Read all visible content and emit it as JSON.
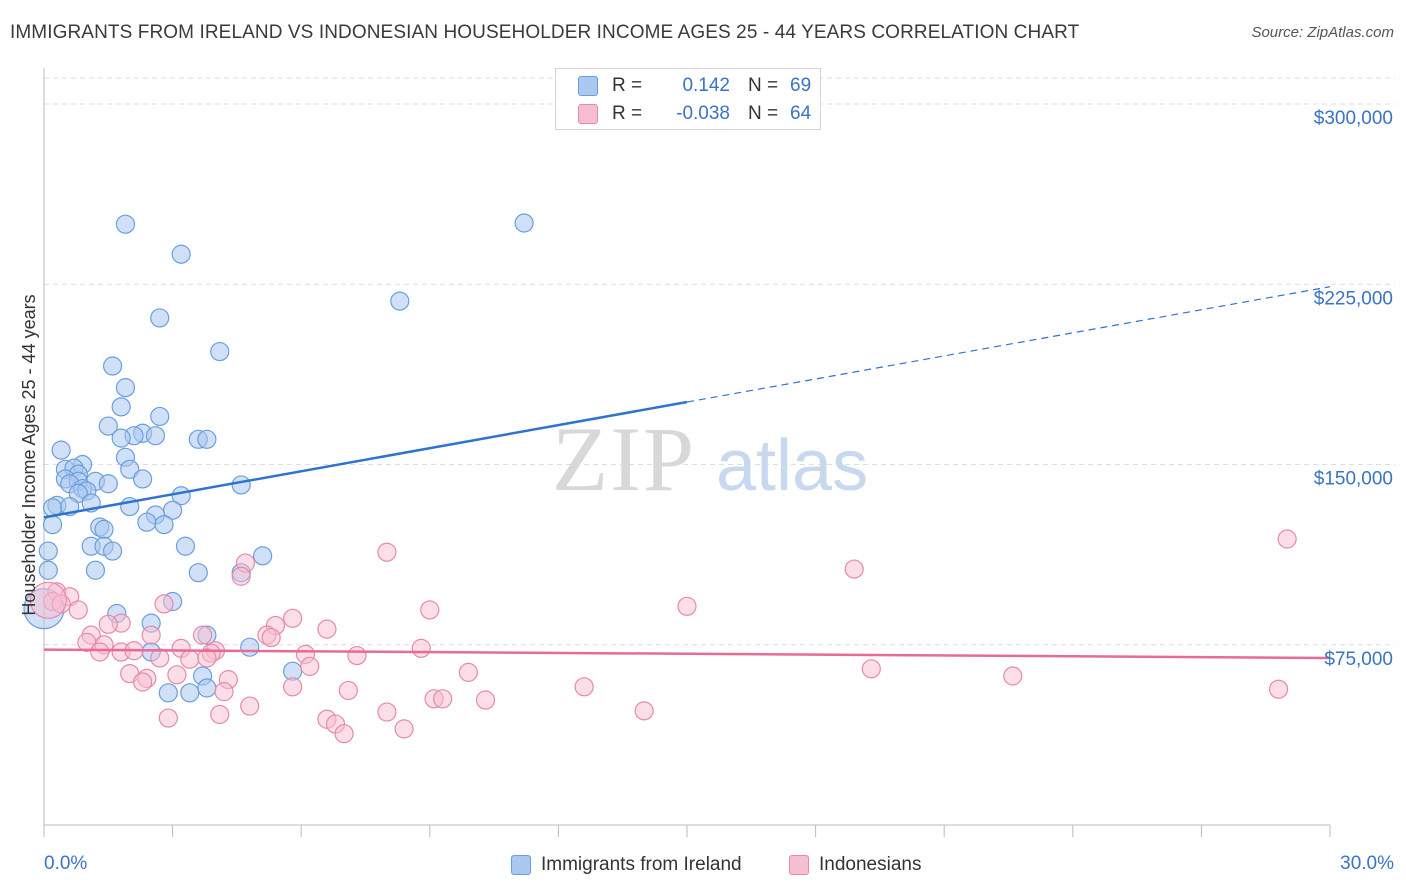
{
  "title": "IMMIGRANTS FROM IRELAND VS INDONESIAN HOUSEHOLDER INCOME AGES 25 - 44 YEARS CORRELATION CHART",
  "source": "Source: ZipAtlas.com",
  "watermark": {
    "zip": "ZIP",
    "atlas": "atlas"
  },
  "legend": {
    "rows": [
      {
        "key": "R =",
        "r": "0.142",
        "n_key": "N =",
        "n": "69"
      },
      {
        "key": "R =",
        "r": "-0.038",
        "n_key": "N =",
        "n": "64"
      }
    ]
  },
  "bottom_legend": {
    "items": [
      {
        "label": "Immigrants from Ireland"
      },
      {
        "label": "Indonesians"
      }
    ]
  },
  "colors": {
    "blue_fill": "#aac8f0",
    "blue_stroke": "#6b9edc",
    "blue_line": "#2f73d0",
    "pink_fill": "#f7bdd0",
    "pink_stroke": "#e58aaa",
    "pink_line": "#e8699a",
    "tick_label": "#3a73c6",
    "grid": "#dedede"
  },
  "chart_data": {
    "type": "scatter",
    "title": "IMMIGRANTS FROM IRELAND VS INDONESIAN HOUSEHOLDER INCOME AGES 25 - 44 YEARS CORRELATION CHART",
    "xlabel": "",
    "ylabel": "Householder Income Ages 25 - 44 years",
    "xlim": [
      0,
      30
    ],
    "ylim": [
      0,
      315000
    ],
    "x_tick_labels": [
      "0.0%",
      "30.0%"
    ],
    "y_ticks": [
      {
        "value": 75000,
        "label": "$75,000"
      },
      {
        "value": 150000,
        "label": "$150,000"
      },
      {
        "value": 225000,
        "label": "$225,000"
      },
      {
        "value": 300000,
        "label": "$300,000"
      }
    ],
    "series": [
      {
        "name": "Immigrants from Ireland",
        "color": "blue",
        "R": 0.142,
        "N": 69,
        "trend": {
          "x0": 0,
          "y0": 128000,
          "x_solid_end": 15,
          "y_solid_end": 176000,
          "x1": 30,
          "y1": 224000
        },
        "points": [
          {
            "x": 1.9,
            "y": 250000
          },
          {
            "x": 11.2,
            "y": 250500
          },
          {
            "x": 3.2,
            "y": 237500
          },
          {
            "x": 8.3,
            "y": 218000
          },
          {
            "x": 2.7,
            "y": 211000
          },
          {
            "x": 4.1,
            "y": 197000
          },
          {
            "x": 1.6,
            "y": 191000
          },
          {
            "x": 1.9,
            "y": 182000
          },
          {
            "x": 1.8,
            "y": 174000
          },
          {
            "x": 2.7,
            "y": 170000
          },
          {
            "x": 1.5,
            "y": 166000
          },
          {
            "x": 2.3,
            "y": 163000
          },
          {
            "x": 2.1,
            "y": 162000
          },
          {
            "x": 1.8,
            "y": 161000
          },
          {
            "x": 2.6,
            "y": 162000
          },
          {
            "x": 3.6,
            "y": 160500
          },
          {
            "x": 3.8,
            "y": 160500
          },
          {
            "x": 0.4,
            "y": 156000
          },
          {
            "x": 1.9,
            "y": 153000
          },
          {
            "x": 0.9,
            "y": 150000
          },
          {
            "x": 0.5,
            "y": 148000
          },
          {
            "x": 0.7,
            "y": 148500
          },
          {
            "x": 2.0,
            "y": 148000
          },
          {
            "x": 0.8,
            "y": 146000
          },
          {
            "x": 0.5,
            "y": 144000
          },
          {
            "x": 2.3,
            "y": 144000
          },
          {
            "x": 0.8,
            "y": 143000
          },
          {
            "x": 1.2,
            "y": 143000
          },
          {
            "x": 0.6,
            "y": 142000
          },
          {
            "x": 1.5,
            "y": 142000
          },
          {
            "x": 4.6,
            "y": 141500
          },
          {
            "x": 0.9,
            "y": 140000
          },
          {
            "x": 1.0,
            "y": 139000
          },
          {
            "x": 0.8,
            "y": 138000
          },
          {
            "x": 3.2,
            "y": 137000
          },
          {
            "x": 1.1,
            "y": 134000
          },
          {
            "x": 0.3,
            "y": 133000
          },
          {
            "x": 0.2,
            "y": 132000
          },
          {
            "x": 0.6,
            "y": 132500
          },
          {
            "x": 2.0,
            "y": 132500
          },
          {
            "x": 3.0,
            "y": 131000
          },
          {
            "x": 2.6,
            "y": 129000
          },
          {
            "x": 2.4,
            "y": 126000
          },
          {
            "x": 0.2,
            "y": 125000
          },
          {
            "x": 1.3,
            "y": 124000
          },
          {
            "x": 2.8,
            "y": 125000
          },
          {
            "x": 1.4,
            "y": 123000
          },
          {
            "x": 1.1,
            "y": 116000
          },
          {
            "x": 1.4,
            "y": 116000
          },
          {
            "x": 3.3,
            "y": 116000
          },
          {
            "x": 0.1,
            "y": 114000
          },
          {
            "x": 1.6,
            "y": 114000
          },
          {
            "x": 5.1,
            "y": 112000
          },
          {
            "x": 0.1,
            "y": 106000
          },
          {
            "x": 1.2,
            "y": 106000
          },
          {
            "x": 3.6,
            "y": 105000
          },
          {
            "x": 4.6,
            "y": 105000
          },
          {
            "x": 3.0,
            "y": 93000
          },
          {
            "x": 1.7,
            "y": 88000
          },
          {
            "x": 2.5,
            "y": 84000
          },
          {
            "x": 3.8,
            "y": 79000
          },
          {
            "x": 4.8,
            "y": 74000
          },
          {
            "x": 2.5,
            "y": 72000
          },
          {
            "x": 5.8,
            "y": 64000
          },
          {
            "x": 3.7,
            "y": 62000
          },
          {
            "x": 3.8,
            "y": 57000
          },
          {
            "x": 2.9,
            "y": 55000
          },
          {
            "x": 3.4,
            "y": 55000
          },
          {
            "x": 0.0,
            "y": 90000
          }
        ]
      },
      {
        "name": "Indonesians",
        "color": "pink",
        "R": -0.038,
        "N": 64,
        "trend": {
          "x0": 0,
          "y0": 73000,
          "x1": 30,
          "y1": 69500
        },
        "points": [
          {
            "x": 29.0,
            "y": 119000
          },
          {
            "x": 18.9,
            "y": 106500
          },
          {
            "x": 8.0,
            "y": 113500
          },
          {
            "x": 4.7,
            "y": 109000
          },
          {
            "x": 4.6,
            "y": 103500
          },
          {
            "x": 0.3,
            "y": 97000
          },
          {
            "x": 0.6,
            "y": 95000
          },
          {
            "x": 0.2,
            "y": 93000
          },
          {
            "x": 0.4,
            "y": 92000
          },
          {
            "x": 2.8,
            "y": 92000
          },
          {
            "x": 15.0,
            "y": 91000
          },
          {
            "x": 9.0,
            "y": 89500
          },
          {
            "x": 0.8,
            "y": 89500
          },
          {
            "x": 5.8,
            "y": 86000
          },
          {
            "x": 1.8,
            "y": 84000
          },
          {
            "x": 1.5,
            "y": 83500
          },
          {
            "x": 5.4,
            "y": 83000
          },
          {
            "x": 6.6,
            "y": 81500
          },
          {
            "x": 1.1,
            "y": 79000
          },
          {
            "x": 3.7,
            "y": 79000
          },
          {
            "x": 5.2,
            "y": 79000
          },
          {
            "x": 2.5,
            "y": 79000
          },
          {
            "x": 5.3,
            "y": 78000
          },
          {
            "x": 1.0,
            "y": 76000
          },
          {
            "x": 1.4,
            "y": 75000
          },
          {
            "x": 3.2,
            "y": 73500
          },
          {
            "x": 4.0,
            "y": 72500
          },
          {
            "x": 1.8,
            "y": 72000
          },
          {
            "x": 2.1,
            "y": 72500
          },
          {
            "x": 3.9,
            "y": 71500
          },
          {
            "x": 8.8,
            "y": 73500
          },
          {
            "x": 6.1,
            "y": 71000
          },
          {
            "x": 7.3,
            "y": 70500
          },
          {
            "x": 1.3,
            "y": 72000
          },
          {
            "x": 3.4,
            "y": 69000
          },
          {
            "x": 3.8,
            "y": 69500
          },
          {
            "x": 2.7,
            "y": 69500
          },
          {
            "x": 6.2,
            "y": 66000
          },
          {
            "x": 19.3,
            "y": 65000
          },
          {
            "x": 9.9,
            "y": 63500
          },
          {
            "x": 2.0,
            "y": 63000
          },
          {
            "x": 3.1,
            "y": 62500
          },
          {
            "x": 22.6,
            "y": 62000
          },
          {
            "x": 2.4,
            "y": 61000
          },
          {
            "x": 4.3,
            "y": 60500
          },
          {
            "x": 2.3,
            "y": 59500
          },
          {
            "x": 12.6,
            "y": 57500
          },
          {
            "x": 5.8,
            "y": 57500
          },
          {
            "x": 28.8,
            "y": 56500
          },
          {
            "x": 7.1,
            "y": 56000
          },
          {
            "x": 4.2,
            "y": 55500
          },
          {
            "x": 9.1,
            "y": 52500
          },
          {
            "x": 10.3,
            "y": 52000
          },
          {
            "x": 9.3,
            "y": 52500
          },
          {
            "x": 4.8,
            "y": 49500
          },
          {
            "x": 8.0,
            "y": 47000
          },
          {
            "x": 14.0,
            "y": 47500
          },
          {
            "x": 4.1,
            "y": 46000
          },
          {
            "x": 2.9,
            "y": 44500
          },
          {
            "x": 6.6,
            "y": 44000
          },
          {
            "x": 6.8,
            "y": 42000
          },
          {
            "x": 8.4,
            "y": 40000
          },
          {
            "x": 7.0,
            "y": 38000
          },
          {
            "x": 0.1,
            "y": 93500
          }
        ]
      }
    ]
  }
}
